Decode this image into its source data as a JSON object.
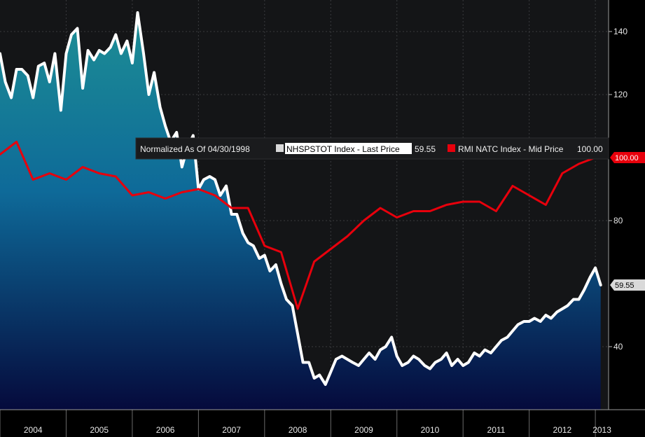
{
  "chart_data": {
    "type": "line",
    "title": "",
    "xlabel": "",
    "ylabel": "",
    "ylim": [
      20,
      150
    ],
    "y_ticks": [
      40,
      80,
      120,
      140
    ],
    "x_ticks": [
      "2004",
      "2005",
      "2006",
      "2007",
      "2008",
      "2009",
      "2010",
      "2011",
      "2012",
      "2013"
    ],
    "x_range": [
      2004.0,
      2013.2
    ],
    "grid": true,
    "legend_position": "middle-right",
    "legend_prefix": "Normalized As Of 04/30/1998",
    "series": [
      {
        "name": "NHSPSTOT Index - Last Price",
        "legend_value": "59.55",
        "last_label": "59.55",
        "color": "#ffffff",
        "fill": true,
        "x": [
          2004.0,
          2004.08,
          2004.17,
          2004.25,
          2004.33,
          2004.42,
          2004.5,
          2004.58,
          2004.67,
          2004.75,
          2004.83,
          2004.92,
          2005.0,
          2005.08,
          2005.17,
          2005.25,
          2005.33,
          2005.42,
          2005.5,
          2005.58,
          2005.67,
          2005.75,
          2005.83,
          2005.92,
          2006.0,
          2006.08,
          2006.17,
          2006.25,
          2006.33,
          2006.42,
          2006.5,
          2006.58,
          2006.67,
          2006.75,
          2006.83,
          2006.92,
          2007.0,
          2007.08,
          2007.17,
          2007.25,
          2007.33,
          2007.42,
          2007.5,
          2007.58,
          2007.67,
          2007.75,
          2007.83,
          2007.92,
          2008.0,
          2008.08,
          2008.17,
          2008.25,
          2008.33,
          2008.42,
          2008.5,
          2008.58,
          2008.67,
          2008.75,
          2008.83,
          2008.92,
          2009.0,
          2009.08,
          2009.17,
          2009.25,
          2009.33,
          2009.42,
          2009.5,
          2009.58,
          2009.67,
          2009.75,
          2009.83,
          2009.92,
          2010.0,
          2010.08,
          2010.17,
          2010.25,
          2010.33,
          2010.42,
          2010.5,
          2010.58,
          2010.67,
          2010.75,
          2010.83,
          2010.92,
          2011.0,
          2011.08,
          2011.17,
          2011.25,
          2011.33,
          2011.42,
          2011.5,
          2011.58,
          2011.67,
          2011.75,
          2011.83,
          2011.92,
          2012.0,
          2012.08,
          2012.17,
          2012.25,
          2012.33,
          2012.42,
          2012.5,
          2012.58,
          2012.67,
          2012.75,
          2012.83,
          2012.92,
          2013.0,
          2013.08
        ],
        "values": [
          133,
          124,
          119,
          128,
          128,
          126,
          119,
          129,
          130,
          124,
          133,
          115,
          133,
          139,
          141,
          122,
          134,
          131,
          134,
          133,
          135,
          139,
          133,
          137,
          130,
          146,
          133,
          120,
          127,
          116,
          110,
          105,
          108,
          97,
          103,
          107,
          90,
          93,
          94,
          93,
          88,
          91,
          82,
          82,
          76,
          73,
          72,
          68,
          69,
          64,
          66,
          60,
          55,
          53,
          44,
          35,
          35,
          30,
          31,
          28,
          32,
          36,
          37,
          36,
          35,
          34,
          36,
          38,
          36,
          39,
          40,
          43,
          37,
          34,
          35,
          37,
          36,
          34,
          33,
          35,
          36,
          38,
          34,
          36,
          34,
          35,
          38,
          37,
          39,
          38,
          40,
          42,
          43,
          45,
          47,
          48,
          48,
          49,
          48,
          50,
          49,
          51,
          52,
          53,
          55,
          55,
          58,
          62,
          65,
          59.55
        ]
      },
      {
        "name": "RMI NATC Index - Mid Price",
        "legend_value": "100.00",
        "last_label": "100.00",
        "color": "#e8000c",
        "fill": false,
        "x": [
          2004.0,
          2004.25,
          2004.5,
          2004.75,
          2005.0,
          2005.25,
          2005.5,
          2005.75,
          2006.0,
          2006.25,
          2006.5,
          2006.75,
          2007.0,
          2007.25,
          2007.5,
          2007.75,
          2008.0,
          2008.25,
          2008.5,
          2008.75,
          2009.0,
          2009.25,
          2009.5,
          2009.75,
          2010.0,
          2010.25,
          2010.5,
          2010.75,
          2011.0,
          2011.25,
          2011.5,
          2011.75,
          2012.0,
          2012.25,
          2012.5,
          2012.75,
          2013.0
        ],
        "values": [
          101,
          105,
          93,
          95,
          93,
          97,
          95,
          94,
          88,
          89,
          87,
          89,
          90,
          88,
          84,
          84,
          72,
          70,
          52,
          67,
          71,
          75,
          80,
          84,
          81,
          83,
          83,
          85,
          86,
          86,
          83,
          91,
          88,
          85,
          95,
          98,
          100
        ]
      }
    ]
  }
}
